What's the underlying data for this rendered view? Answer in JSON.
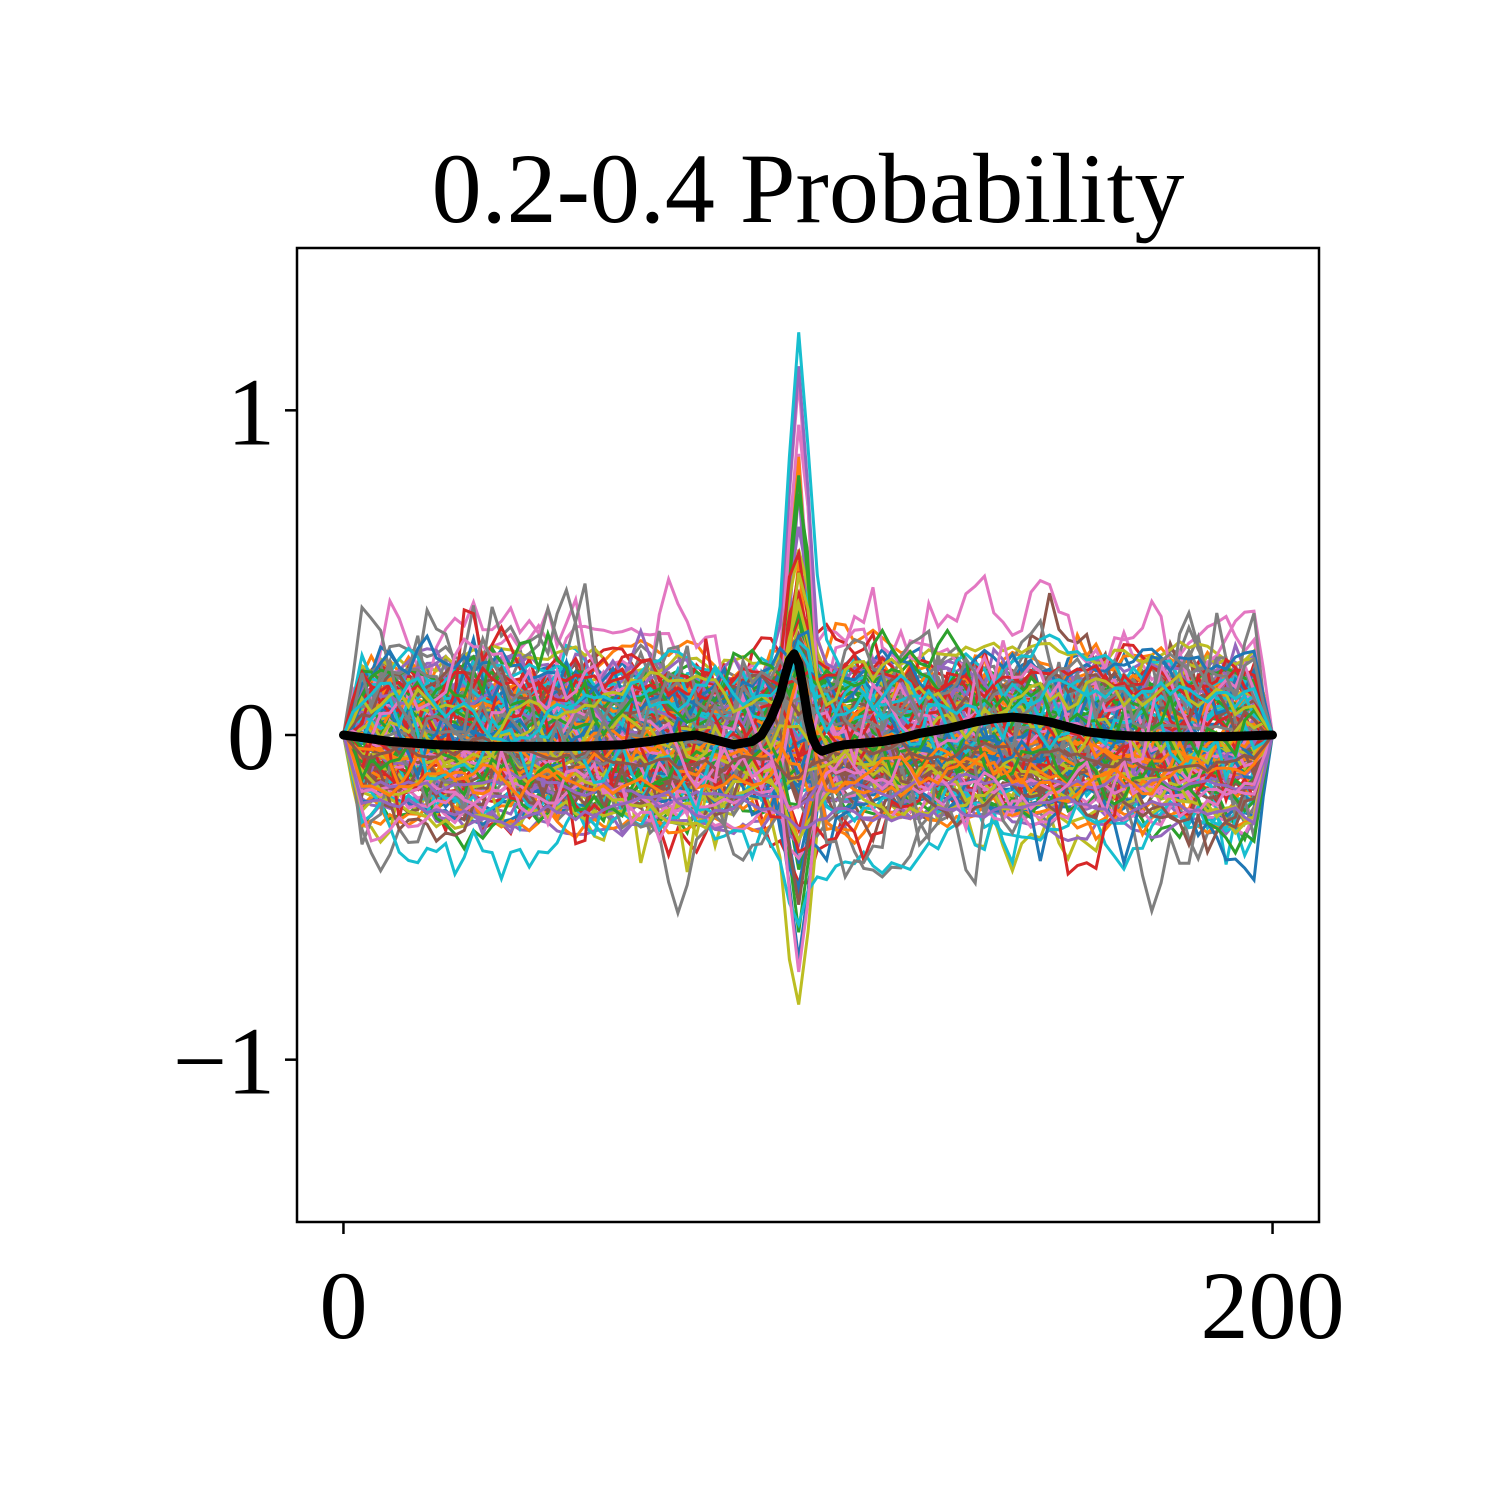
{
  "chart_data": {
    "type": "line",
    "title": "0.2-0.4 Probability",
    "xlabel": "",
    "ylabel": "",
    "xlim": [
      -10,
      210
    ],
    "ylim": [
      -1.5,
      1.5
    ],
    "x_ticks": [
      0,
      200
    ],
    "x_tick_labels": [
      "0",
      "200"
    ],
    "y_ticks": [
      -1,
      0,
      1
    ],
    "y_tick_labels": [
      "−1",
      "0",
      "1"
    ],
    "grid": false,
    "legend": "none",
    "background_series_count": 160,
    "background_palette": [
      "#1f77b4",
      "#ff7f0e",
      "#2ca02c",
      "#d62728",
      "#9467bd",
      "#8c564b",
      "#e377c2",
      "#7f7f7f",
      "#bcbd22",
      "#17becf"
    ],
    "mean_line_color": "#000000",
    "series": [
      {
        "role": "mean",
        "x": [
          0,
          10,
          20,
          30,
          40,
          50,
          60,
          66,
          70,
          76,
          80,
          84,
          88,
          90,
          92,
          94,
          95,
          96,
          97,
          98,
          99,
          100,
          101,
          102,
          103,
          104,
          106,
          108,
          112,
          116,
          120,
          124,
          130,
          136,
          140,
          144,
          148,
          152,
          156,
          160,
          166,
          172,
          180,
          190,
          200
        ],
        "values": [
          0.0,
          -0.02,
          -0.03,
          -0.035,
          -0.035,
          -0.035,
          -0.03,
          -0.02,
          -0.01,
          0.0,
          -0.015,
          -0.03,
          -0.02,
          0.0,
          0.05,
          0.12,
          0.18,
          0.23,
          0.25,
          0.22,
          0.14,
          0.05,
          -0.01,
          -0.04,
          -0.05,
          -0.045,
          -0.035,
          -0.03,
          -0.025,
          -0.02,
          -0.01,
          0.005,
          0.02,
          0.04,
          0.05,
          0.055,
          0.05,
          0.04,
          0.025,
          0.01,
          0.0,
          -0.005,
          -0.005,
          -0.005,
          0.0
        ]
      }
    ]
  }
}
